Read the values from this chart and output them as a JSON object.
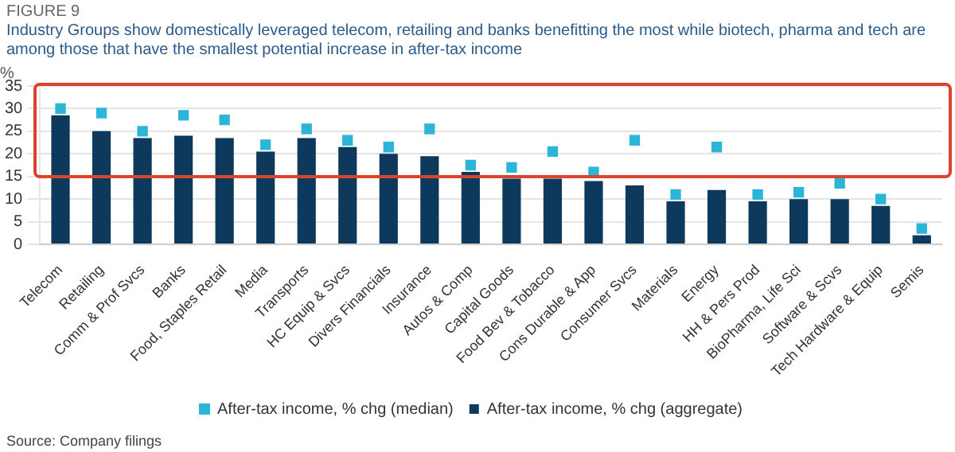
{
  "chart_data": {
    "type": "bar",
    "title": "Industry Groups show domestically leveraged telecom, retailing and banks benefitting the most while biotech, pharma and tech are among those that have the smallest potential increase in after-tax income",
    "ylabel": "%",
    "annotations": [
      "FIGURE 9",
      "Source: Company filings"
    ],
    "categories": [
      "Telecom",
      "Retailing",
      "Comm & Prof Svcs",
      "Banks",
      "Food, Staples Retail",
      "Media",
      "Transports",
      "HC Equip & Svcs",
      "Divers Financials",
      "Insurance",
      "Autos & Comp",
      "Capital Goods",
      "Food Bev & Tobacco",
      "Cons Durable & App",
      "Consumer Svcs",
      "Materials",
      "Energy",
      "HH & Pers Prod",
      "BioPharma, Life Sci",
      "Software & Scvs",
      "Tech Hardware & Equip",
      "Semis"
    ],
    "series": [
      {
        "name": "After-tax income, % chg (aggregate)",
        "color": "#0d3a5c",
        "values": [
          28.5,
          25,
          23.5,
          24,
          23.5,
          20.5,
          23.5,
          21.5,
          20,
          19.5,
          16,
          14.5,
          14.5,
          14,
          13,
          9.5,
          12,
          9.5,
          10,
          10,
          8.5,
          2
        ]
      },
      {
        "name": "After-tax income, % chg (median)",
        "type": "scatter",
        "color": "#2bb5d8",
        "values": [
          30,
          29,
          25,
          28.5,
          27.5,
          22,
          25.5,
          23,
          21.5,
          25.5,
          17.5,
          17,
          20.5,
          16,
          23,
          11,
          21.5,
          11,
          11.5,
          13.5,
          10,
          3.5
        ]
      }
    ],
    "ylim": [
      0,
      35
    ],
    "yticks": [
      0,
      5,
      10,
      15,
      20,
      25,
      30,
      35
    ],
    "grid": "y",
    "legend": "bottom",
    "marker": "square"
  }
}
